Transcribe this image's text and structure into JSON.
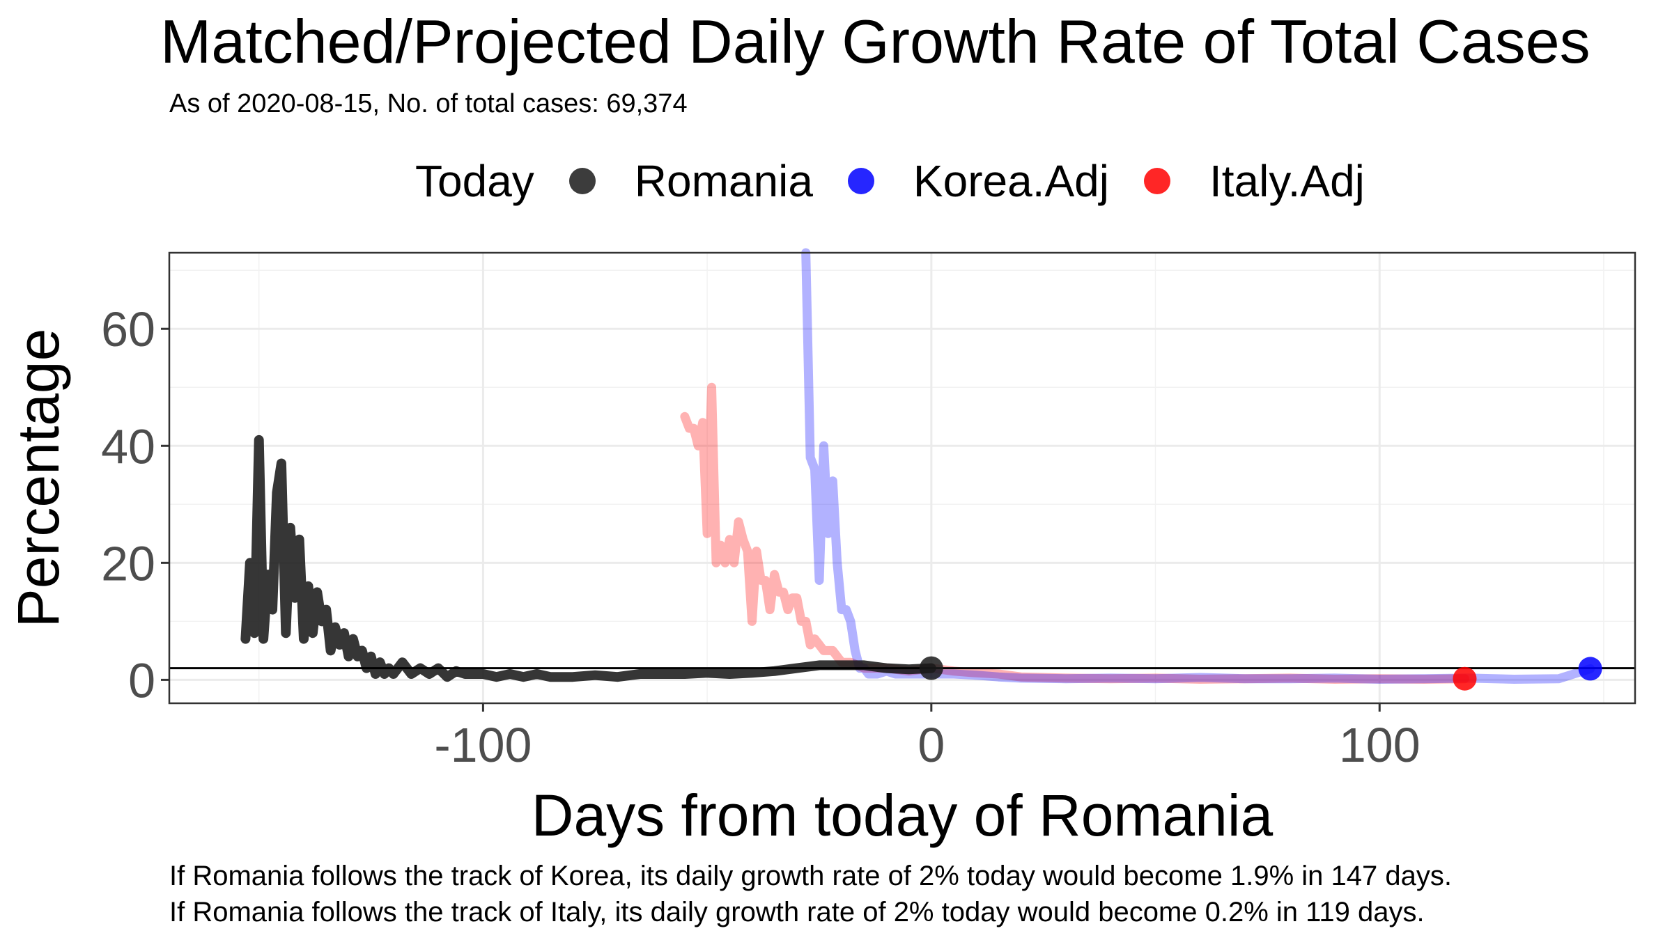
{
  "chart_data": {
    "type": "line",
    "title": "Matched/Projected Daily Growth Rate of Total Cases",
    "subtitle": "As of 2020-08-15, No. of total cases: 69,374",
    "xlabel": "Days from today of Romania",
    "ylabel": "Percentage",
    "xlim": [
      -170,
      157
    ],
    "ylim": [
      -4,
      73
    ],
    "x_ticks": [
      -100,
      0,
      100
    ],
    "y_ticks": [
      0,
      20,
      40,
      60
    ],
    "hline": 2,
    "grid": true,
    "legend": {
      "title": "Today",
      "placement": "top",
      "entries": [
        {
          "label": "Romania",
          "color": "#1a1a1a"
        },
        {
          "label": "Korea.Adj",
          "color": "#0000ff"
        },
        {
          "label": "Italy.Adj",
          "color": "#ff0000"
        }
      ]
    },
    "series": [
      {
        "name": "Romania",
        "color": "#1a1a1a",
        "x": [
          -153,
          -152,
          -151,
          -150,
          -149,
          -148,
          -147,
          -146,
          -145,
          -144,
          -143,
          -142,
          -141,
          -140,
          -139,
          -138,
          -137,
          -136,
          -135,
          -134,
          -133,
          -132,
          -131,
          -130,
          -129,
          -128,
          -127,
          -126,
          -125,
          -124,
          -123,
          -122,
          -121,
          -120,
          -118,
          -116,
          -114,
          -112,
          -110,
          -108,
          -106,
          -104,
          -102,
          -100,
          -97,
          -94,
          -91,
          -88,
          -85,
          -80,
          -75,
          -70,
          -65,
          -60,
          -55,
          -50,
          -45,
          -40,
          -35,
          -30,
          -25,
          -20,
          -15,
          -10,
          -5,
          0
        ],
        "y": [
          7,
          20,
          8,
          41,
          7,
          18,
          12,
          32,
          37,
          8,
          26,
          14,
          24,
          7,
          16,
          8,
          15,
          10,
          12,
          5,
          9,
          6,
          8,
          4,
          7,
          4,
          5,
          2,
          4,
          1,
          3,
          1,
          2,
          1,
          3,
          1,
          2,
          1,
          2,
          0.5,
          1.5,
          1,
          1,
          1,
          0.5,
          1,
          0.5,
          1,
          0.5,
          0.5,
          0.8,
          0.5,
          1,
          1,
          1,
          1.2,
          1,
          1.2,
          1.5,
          2,
          2.5,
          2.5,
          2.5,
          2,
          1.8,
          2
        ]
      },
      {
        "name": "Korea.Adj",
        "color": "#0000ff",
        "x": [
          -28,
          -27,
          -26,
          -25,
          -24,
          -23,
          -22,
          -21,
          -20,
          -19,
          -18,
          -17,
          -16,
          -15,
          -14,
          -13,
          -12,
          -10,
          -8,
          -5,
          0,
          5,
          10,
          15,
          20,
          30,
          40,
          50,
          60,
          70,
          80,
          90,
          100,
          110,
          120,
          130,
          140,
          147
        ],
        "y": [
          73,
          38,
          36,
          17,
          40,
          25,
          34,
          20,
          12,
          12,
          10,
          5,
          2,
          2,
          1,
          1,
          1,
          1.5,
          1,
          1,
          1,
          1,
          0.8,
          0.5,
          0.3,
          0.2,
          0.3,
          0.2,
          0.4,
          0.2,
          0.2,
          0.3,
          0.1,
          0.2,
          0.3,
          0.1,
          0.2,
          1.9
        ]
      },
      {
        "name": "Italy.Adj",
        "color": "#ff0000",
        "x": [
          -55,
          -54,
          -53,
          -52,
          -51,
          -50,
          -49,
          -48,
          -47,
          -46,
          -45,
          -44,
          -43,
          -42,
          -41,
          -40,
          -39,
          -38,
          -37,
          -36,
          -35,
          -34,
          -33,
          -32,
          -31,
          -30,
          -29,
          -28,
          -27,
          -26,
          -25,
          -24,
          -23,
          -22,
          -21,
          -20,
          -18,
          -15,
          -12,
          -10,
          -5,
          0,
          5,
          10,
          15,
          20,
          30,
          40,
          50,
          60,
          70,
          80,
          90,
          100,
          110,
          119
        ],
        "y": [
          45,
          43,
          43,
          40,
          44,
          25,
          50,
          20,
          23,
          20,
          24,
          20,
          27,
          24,
          22,
          10,
          22,
          17,
          17,
          12,
          18,
          15,
          15,
          12,
          14,
          14,
          10,
          10,
          6,
          7,
          6,
          5,
          5,
          5,
          4,
          3,
          3,
          2,
          2,
          2,
          1.5,
          2,
          1.5,
          1.2,
          1,
          0.5,
          0.3,
          0.2,
          0.3,
          0.1,
          0.2,
          0.3,
          0.1,
          0.2,
          0.1,
          0.2
        ]
      }
    ],
    "points": [
      {
        "series": "Romania",
        "x": 0,
        "y": 2,
        "color": "#1a1a1a"
      },
      {
        "series": "Korea.Adj",
        "x": 147,
        "y": 1.9,
        "color": "#0000ff"
      },
      {
        "series": "Italy.Adj",
        "x": 119,
        "y": 0.2,
        "color": "#ff0000"
      }
    ]
  },
  "captions": {
    "korea": "If Romania follows the track of Korea, its daily growth rate of 2% today would become 1.9% in 147 days.",
    "italy": "If Romania follows the track of Italy, its daily growth rate of 2% today would become 0.2% in 119 days."
  }
}
